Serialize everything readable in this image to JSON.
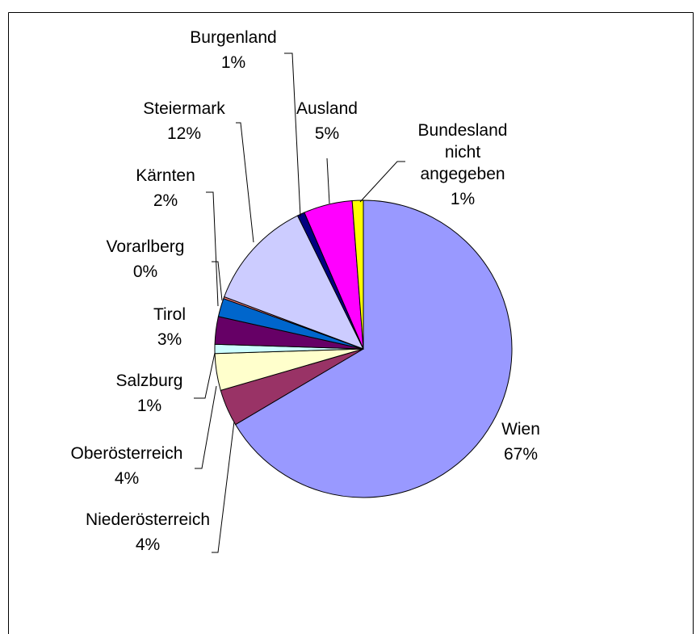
{
  "chart_data": {
    "type": "pie",
    "title": "",
    "slices": [
      {
        "label": "Wien",
        "pct_label": "67%",
        "value": 66.5,
        "color": "#9999FF"
      },
      {
        "label": "Niederösterreich",
        "pct_label": "4%",
        "value": 4.0,
        "color": "#993366"
      },
      {
        "label": "Oberösterreich",
        "pct_label": "4%",
        "value": 4.0,
        "color": "#FFFFCC"
      },
      {
        "label": "Salzburg",
        "pct_label": "1%",
        "value": 1.0,
        "color": "#CCFFFF"
      },
      {
        "label": "Tirol",
        "pct_label": "3%",
        "value": 3.0,
        "color": "#660066"
      },
      {
        "label": "Kärnten",
        "pct_label": "2%",
        "value": 2.0,
        "color": "#0066CC"
      },
      {
        "label": "Vorarlberg",
        "pct_label": "0%",
        "value": 0.2,
        "color": "#FF8080"
      },
      {
        "label": "Steiermark",
        "pct_label": "12%",
        "value": 12.0,
        "color": "#CCCCFF"
      },
      {
        "label": "Burgenland",
        "pct_label": "1%",
        "value": 0.8,
        "color": "#000080"
      },
      {
        "label": "Ausland",
        "pct_label": "5%",
        "value": 5.3,
        "color": "#FF00FF"
      },
      {
        "label": "Bundesland nicht angegeben",
        "pct_label": "1%",
        "value": 1.2,
        "color": "#FFFF00"
      }
    ]
  }
}
